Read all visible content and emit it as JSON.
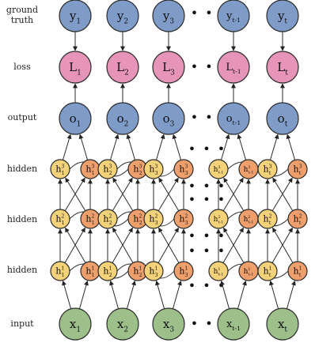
{
  "rows": {
    "truth": {
      "label_line1": "ground",
      "label_line2": "truth",
      "color": "#7f9cc9"
    },
    "loss": {
      "label": "loss",
      "color": "#e695b8"
    },
    "output": {
      "label": "output",
      "color": "#7f9cc9"
    },
    "hidden3": {
      "label": "hidden"
    },
    "hidden2": {
      "label": "hidden"
    },
    "hidden1": {
      "label": "hidden"
    },
    "input": {
      "label": "input",
      "color": "#9dc08b"
    }
  },
  "hidden_colors": {
    "forward": "#f3d27a",
    "backward": "#ef9f6c"
  },
  "columns": [
    {
      "t_label": "1"
    },
    {
      "t_label": "2"
    },
    {
      "t_label": "3"
    },
    {
      "t_label": "t-1"
    },
    {
      "t_label": "t"
    }
  ],
  "ellipsis": "• • •",
  "symbols": {
    "truth": "y",
    "loss": "L",
    "output": "o",
    "hidden": "h",
    "input": "x"
  }
}
